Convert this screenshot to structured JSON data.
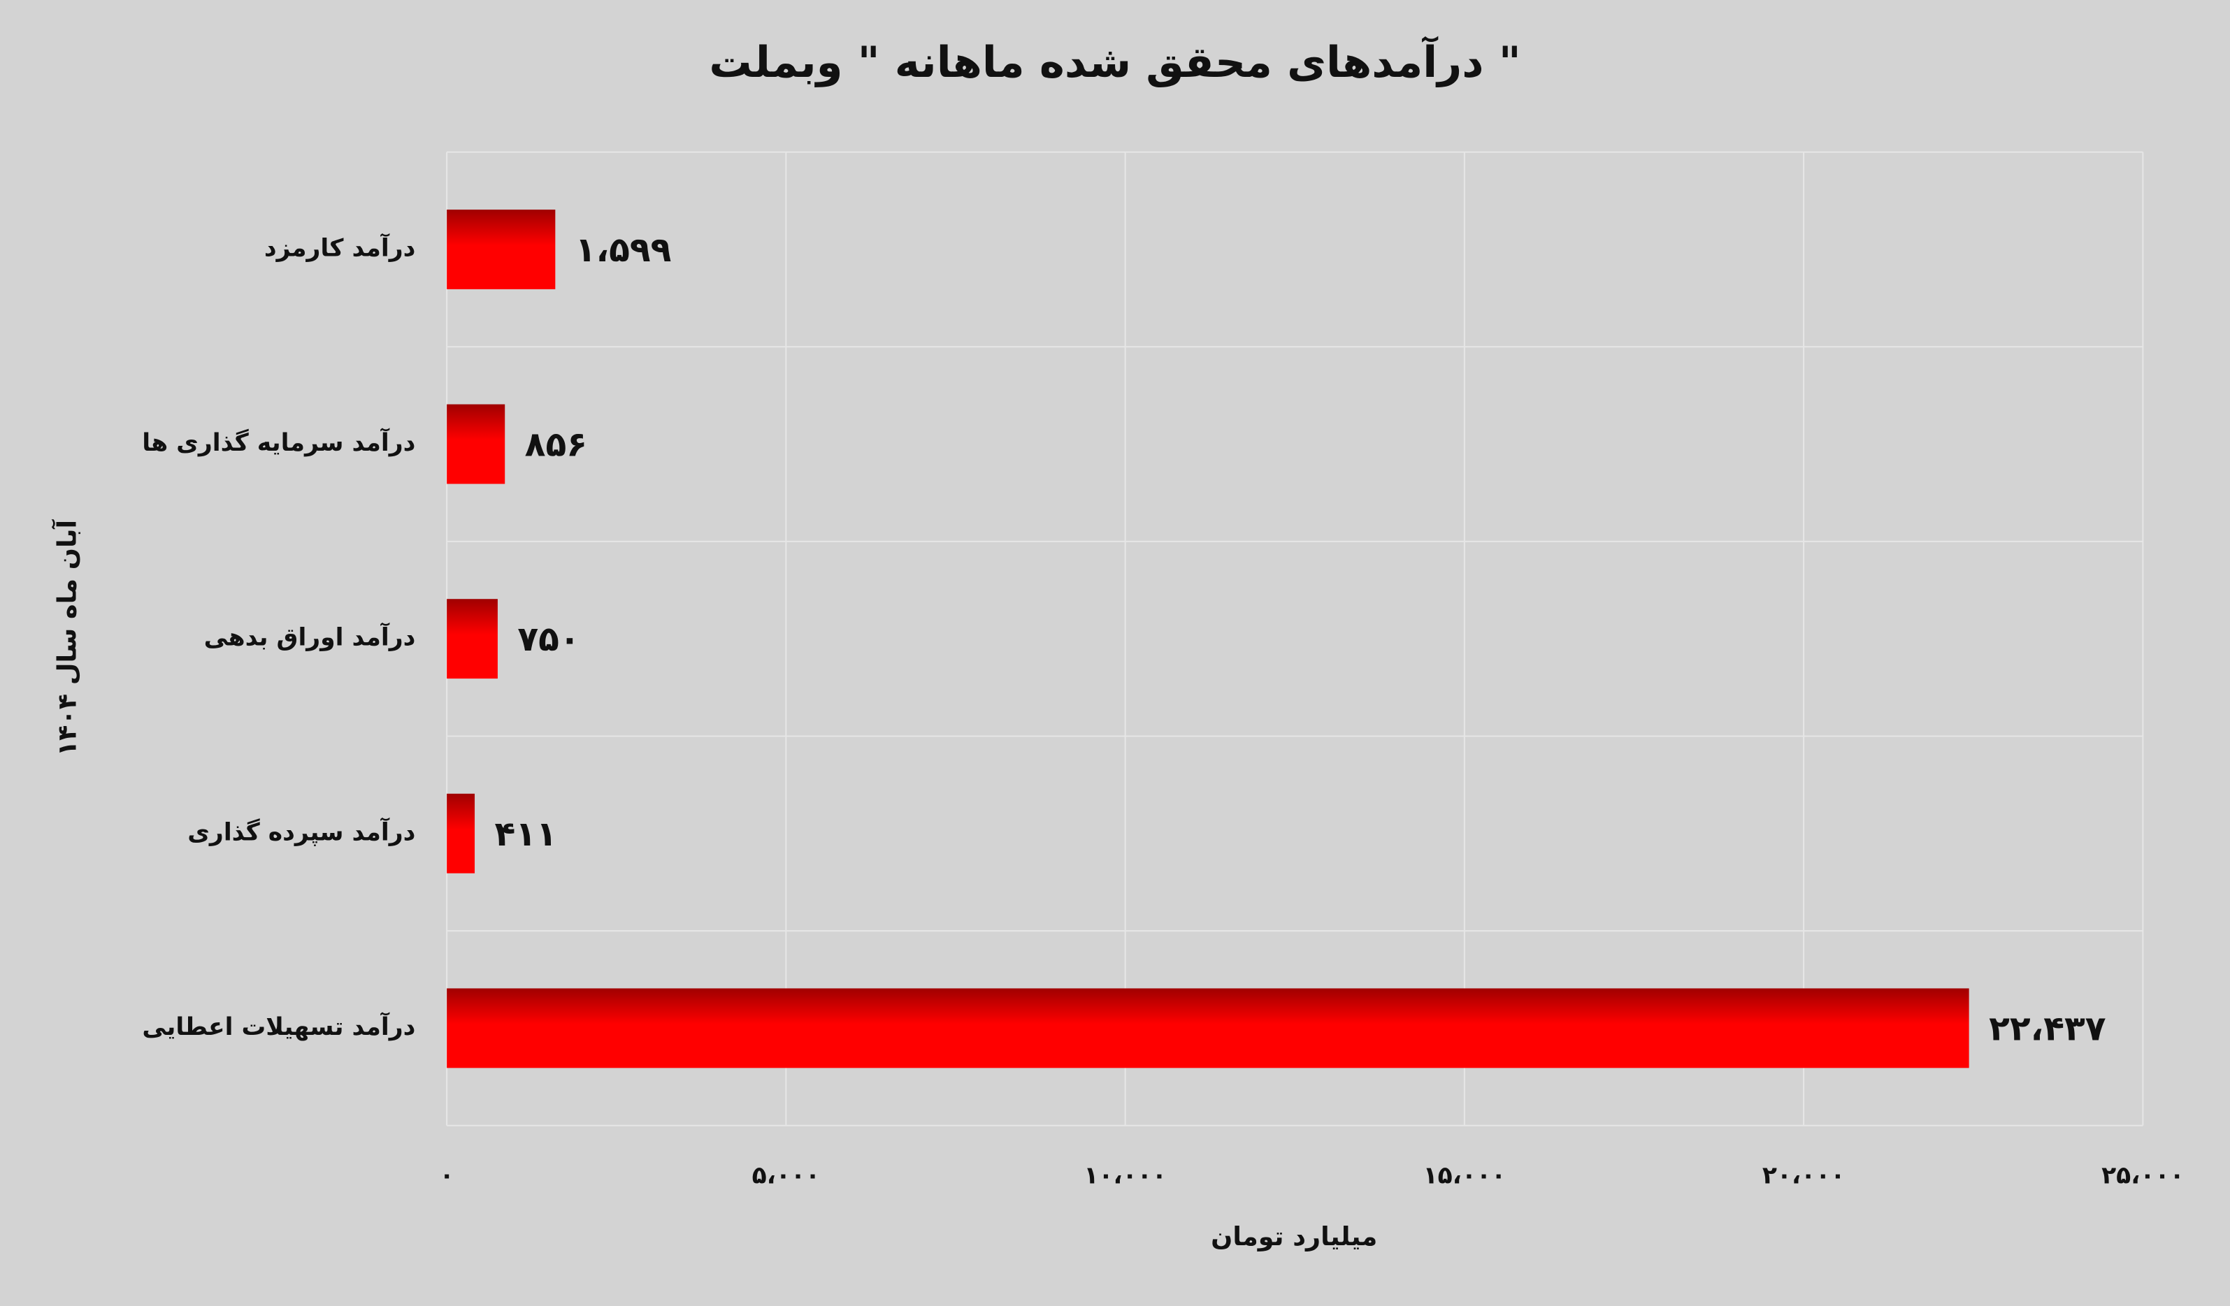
{
  "chart_data": {
    "type": "bar",
    "orientation": "horizontal",
    "title": "درآمدهای محقق شده ماهانه \" وبملت \"",
    "x_label": "میلیارد تومان",
    "y_label": "آبان ماه سال ۱۴۰۴",
    "categories": [
      "درآمد کارمزد",
      "درآمد سرمایه گذاری ها",
      "درآمد اوراق بدهی",
      "درآمد سپرده گذاری",
      "درآمد تسهیلات اعطایی"
    ],
    "values": [
      1599,
      856,
      750,
      411,
      22437
    ],
    "value_labels": [
      "۱،۵۹۹",
      "۸۵۶",
      "۷۵۰",
      "۴۱۱",
      "۲۲،۴۳۷"
    ],
    "color": "#ff0000",
    "xlim": [
      0,
      25000
    ],
    "xticks": [
      {
        "value": 0,
        "label": "۰"
      },
      {
        "value": 5000,
        "label": "۵،۰۰۰"
      },
      {
        "value": 10000,
        "label": "۱۰،۰۰۰"
      },
      {
        "value": 15000,
        "label": "۱۵،۰۰۰"
      },
      {
        "value": 20000,
        "label": "۲۰،۰۰۰"
      },
      {
        "value": 25000,
        "label": "۲۵،۰۰۰"
      }
    ],
    "grid": true
  }
}
